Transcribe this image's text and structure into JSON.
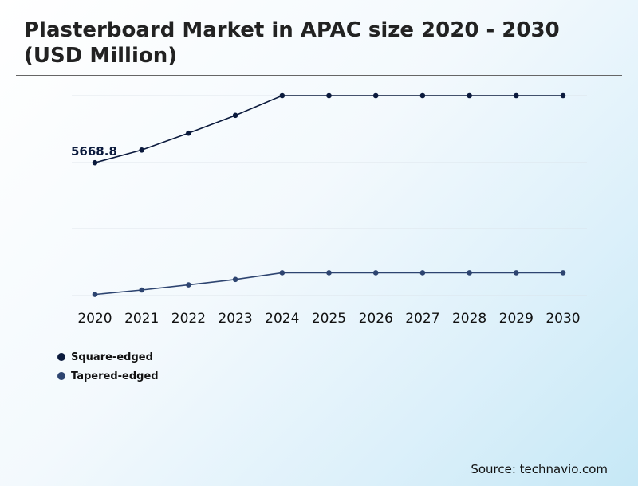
{
  "chart_data": {
    "type": "line",
    "title": "Plasterboard Market in APAC size 2020 - 2030 (USD Million)",
    "xlabel": "",
    "ylabel": "",
    "categories": [
      "2020",
      "2021",
      "2022",
      "2023",
      "2024",
      "2025",
      "2026",
      "2027",
      "2028",
      "2029",
      "2030"
    ],
    "ylim": [
      0,
      12000
    ],
    "grid": true,
    "legend": "bottom-left",
    "annotation": {
      "text": "5668.8",
      "series": 0,
      "index": 0
    },
    "series": [
      {
        "name": "Square-edged",
        "color": "#0b1a3d",
        "values": [
          5668.8,
          6180,
          6860,
          7580,
          8380,
          8380,
          8380,
          8380,
          8380,
          8380,
          8380
        ]
      },
      {
        "name": "Tapered-edged",
        "color": "#2d4470",
        "values": [
          50,
          250,
          480,
          720,
          1020,
          1020,
          1020,
          1020,
          1020,
          1020,
          1020
        ]
      }
    ]
  },
  "source": "Source: technavio.com"
}
